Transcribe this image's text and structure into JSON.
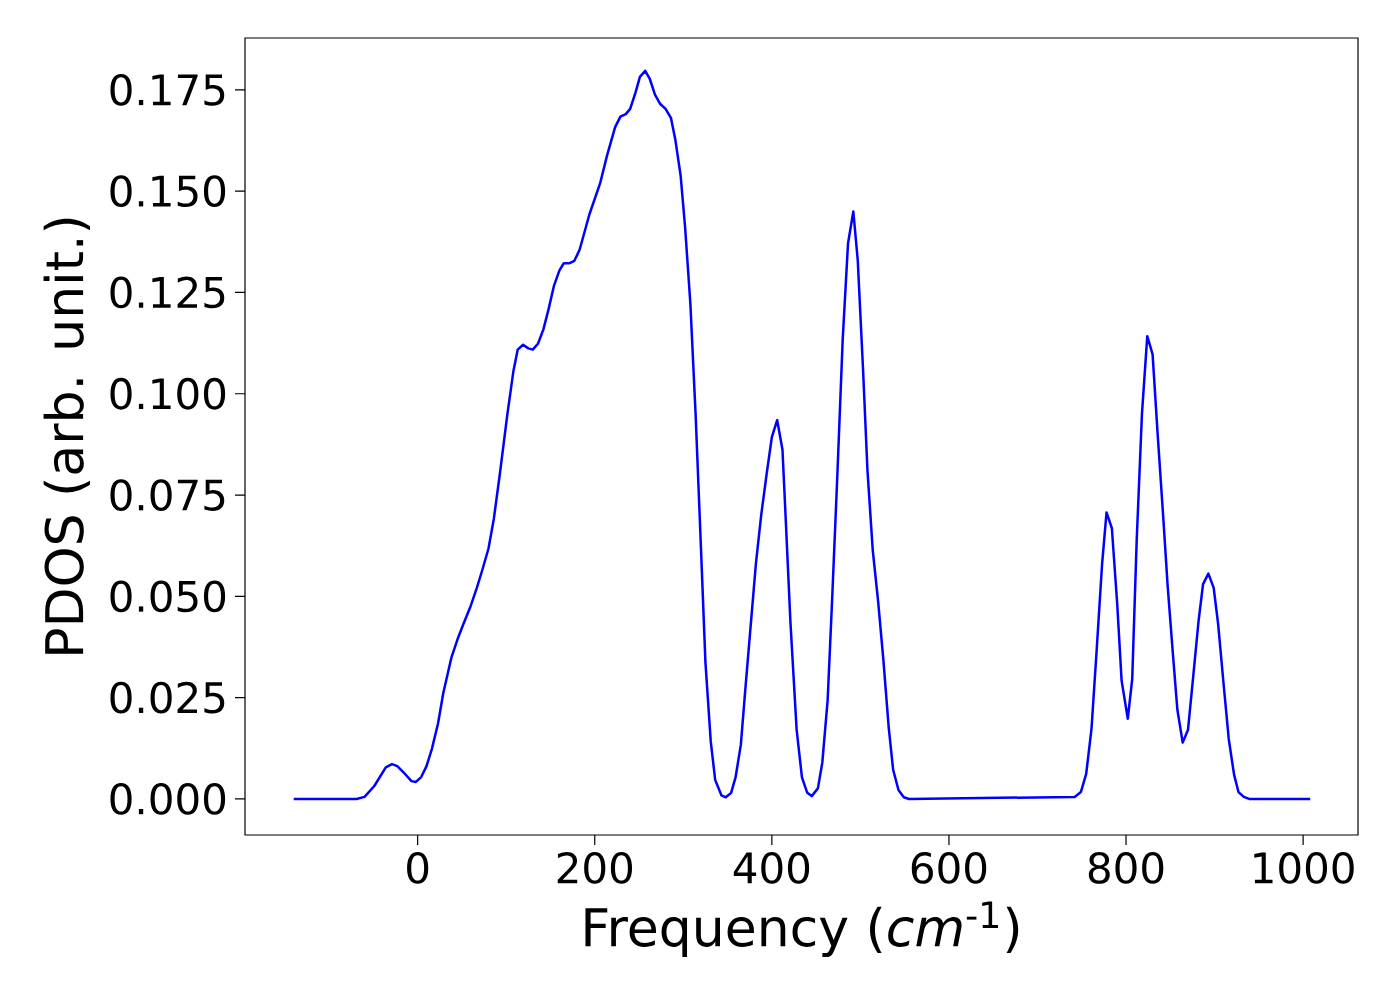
{
  "chart_data": {
    "type": "line",
    "xlabel": "Frequency (*cm*$^{-1}$)",
    "ylabel": "PDOS (arb. unit.)",
    "xlim": [
      -195,
      1062
    ],
    "ylim": [
      -0.0089,
      0.1878
    ],
    "xticks": [
      0,
      200,
      400,
      600,
      800,
      1000
    ],
    "yticks": [
      {
        "value": 0,
        "label": "0.000"
      },
      {
        "value": 0.025,
        "label": "0.025"
      },
      {
        "value": 0.05,
        "label": "0.050"
      },
      {
        "value": 0.075,
        "label": "0.075"
      },
      {
        "value": 0.1,
        "label": "0.100"
      },
      {
        "value": 0.125,
        "label": "0.125"
      },
      {
        "value": 0.15,
        "label": "0.150"
      },
      {
        "value": 0.175,
        "label": "0.175"
      }
    ],
    "line_style": "solid",
    "series": [
      {
        "color": "#0000ff",
        "x": [
          -140,
          -69,
          -60,
          -49,
          -36,
          -29,
          -23,
          -14,
          -7,
          -2,
          4,
          10,
          16,
          23,
          29,
          38,
          45,
          51,
          60,
          67,
          73,
          80,
          86,
          93,
          101,
          108,
          113,
          119,
          125,
          130,
          136,
          142,
          148,
          154,
          160,
          165,
          171,
          177,
          183,
          194,
          206,
          214,
          223,
          229,
          235,
          240,
          246,
          251,
          257,
          262,
          268,
          274,
          280,
          286,
          291,
          297,
          302,
          308,
          314,
          320,
          325,
          331,
          336,
          343,
          348,
          354,
          359,
          365,
          370,
          376,
          382,
          388,
          394,
          400,
          406,
          412,
          416,
          421,
          428,
          434,
          440,
          445,
          452,
          457,
          463,
          468,
          474,
          480,
          486,
          492,
          497,
          503,
          508,
          514,
          520,
          526,
          532,
          537,
          543,
          549,
          555,
          742,
          749,
          755,
          761,
          767,
          773,
          778,
          784,
          790,
          795,
          802,
          807,
          812,
          818,
          824,
          830,
          836,
          842,
          847,
          853,
          858,
          864,
          870,
          876,
          882,
          887,
          893,
          899,
          904,
          910,
          916,
          922,
          927,
          933,
          939,
          1008
        ],
        "values": [
          0,
          0,
          0.0005,
          0.0032,
          0.0078,
          0.0086,
          0.0081,
          0.0061,
          0.0044,
          0.0042,
          0.0054,
          0.0081,
          0.0123,
          0.0186,
          0.0262,
          0.0348,
          0.0394,
          0.0428,
          0.0477,
          0.0522,
          0.0565,
          0.0618,
          0.0691,
          0.0805,
          0.0944,
          0.1054,
          0.1109,
          0.1121,
          0.1112,
          0.1109,
          0.1124,
          0.1159,
          0.121,
          0.1267,
          0.1304,
          0.1322,
          0.1322,
          0.1328,
          0.1356,
          0.1443,
          0.1519,
          0.1589,
          0.1658,
          0.1684,
          0.169,
          0.1703,
          0.1743,
          0.1782,
          0.1797,
          0.1778,
          0.1738,
          0.1715,
          0.1703,
          0.1681,
          0.1627,
          0.1538,
          0.1412,
          0.1222,
          0.0944,
          0.0616,
          0.0337,
          0.0142,
          0.0047,
          0.0009,
          0.0004,
          0.0015,
          0.0053,
          0.0134,
          0.0269,
          0.0425,
          0.0581,
          0.0701,
          0.08,
          0.0893,
          0.0935,
          0.0862,
          0.0675,
          0.0436,
          0.0171,
          0.0053,
          0.0015,
          0.0007,
          0.0026,
          0.009,
          0.0243,
          0.0488,
          0.08,
          0.1133,
          0.137,
          0.145,
          0.133,
          0.106,
          0.081,
          0.0613,
          0.0488,
          0.0342,
          0.0176,
          0.0072,
          0.0022,
          0.0004,
          0,
          0.0005,
          0.0017,
          0.0062,
          0.0173,
          0.0373,
          0.0581,
          0.0707,
          0.0668,
          0.0483,
          0.0292,
          0.0198,
          0.0296,
          0.0636,
          0.0951,
          0.1142,
          0.1097,
          0.0891,
          0.0696,
          0.0526,
          0.0356,
          0.022,
          0.0139,
          0.0171,
          0.0305,
          0.0441,
          0.053,
          0.0556,
          0.0521,
          0.0432,
          0.0288,
          0.0148,
          0.006,
          0.0017,
          0.0005,
          0,
          0
        ]
      }
    ]
  }
}
